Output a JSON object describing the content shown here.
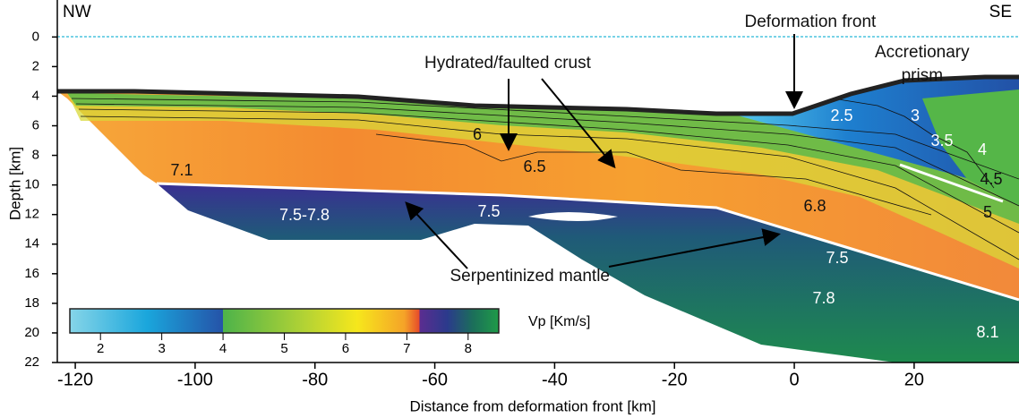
{
  "chart_data": {
    "type": "velocity-section",
    "x_label": "Distance from deformation front [km]",
    "y_label": "Depth [km]",
    "xlim": [
      -123,
      37.5
    ],
    "xticks": [
      -120,
      -100,
      -80,
      -60,
      -40,
      -20,
      0,
      20
    ],
    "ylim": [
      22,
      -2.5
    ],
    "yticks": [
      0,
      2,
      4,
      6,
      8,
      10,
      12,
      14,
      16,
      18,
      20,
      22
    ],
    "side_labels": [
      "NW",
      "SE"
    ],
    "annotations": [
      "Hydrated/faulted crust",
      "Deformation front",
      "Accretionary\nprism",
      "Serpentinized mantle"
    ],
    "contour_labels": [
      "2.5",
      "3",
      "3.5",
      "4",
      "4.5",
      "5",
      "6",
      "6.5",
      "7.1",
      "7.5-7.8",
      "7.5",
      "6.8",
      "7.5",
      "7.8",
      "8.1"
    ],
    "colorbar": {
      "label": "Vp [Km/s]",
      "lim": [
        1.5,
        8.5
      ],
      "ticks": [
        2,
        3,
        4,
        5,
        6,
        7,
        8
      ]
    }
  }
}
